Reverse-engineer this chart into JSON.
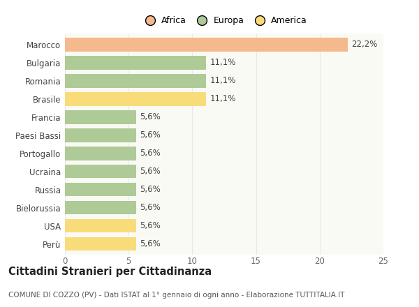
{
  "categories": [
    "Marocco",
    "Bulgaria",
    "Romania",
    "Brasile",
    "Francia",
    "Paesi Bassi",
    "Portogallo",
    "Ucraina",
    "Russia",
    "Bielorussia",
    "USA",
    "Perù"
  ],
  "values": [
    22.2,
    11.1,
    11.1,
    11.1,
    5.6,
    5.6,
    5.6,
    5.6,
    5.6,
    5.6,
    5.6,
    5.6
  ],
  "labels": [
    "22,2%",
    "11,1%",
    "11,1%",
    "11,1%",
    "5,6%",
    "5,6%",
    "5,6%",
    "5,6%",
    "5,6%",
    "5,6%",
    "5,6%",
    "5,6%"
  ],
  "colors": [
    "#F5B98E",
    "#AECA96",
    "#AECA96",
    "#F9DC7A",
    "#AECA96",
    "#AECA96",
    "#AECA96",
    "#AECA96",
    "#AECA96",
    "#AECA96",
    "#F9DC7A",
    "#F9DC7A"
  ],
  "legend": [
    {
      "label": "Africa",
      "color": "#F5B98E"
    },
    {
      "label": "Europa",
      "color": "#AECA96"
    },
    {
      "label": "America",
      "color": "#F9DC7A"
    }
  ],
  "xlim": [
    0,
    25
  ],
  "xticks": [
    0,
    5,
    10,
    15,
    20,
    25
  ],
  "title": "Cittadini Stranieri per Cittadinanza",
  "subtitle": "COMUNE DI COZZO (PV) - Dati ISTAT al 1° gennaio di ogni anno - Elaborazione TUTTITALIA.IT",
  "background_color": "#FFFFFF",
  "plot_bg_color": "#FAFAF5",
  "grid_color": "#E8E8E8",
  "bar_height": 0.75,
  "label_fontsize": 8.5,
  "tick_fontsize": 8.5,
  "title_fontsize": 10.5,
  "subtitle_fontsize": 7.5,
  "legend_fontsize": 9
}
